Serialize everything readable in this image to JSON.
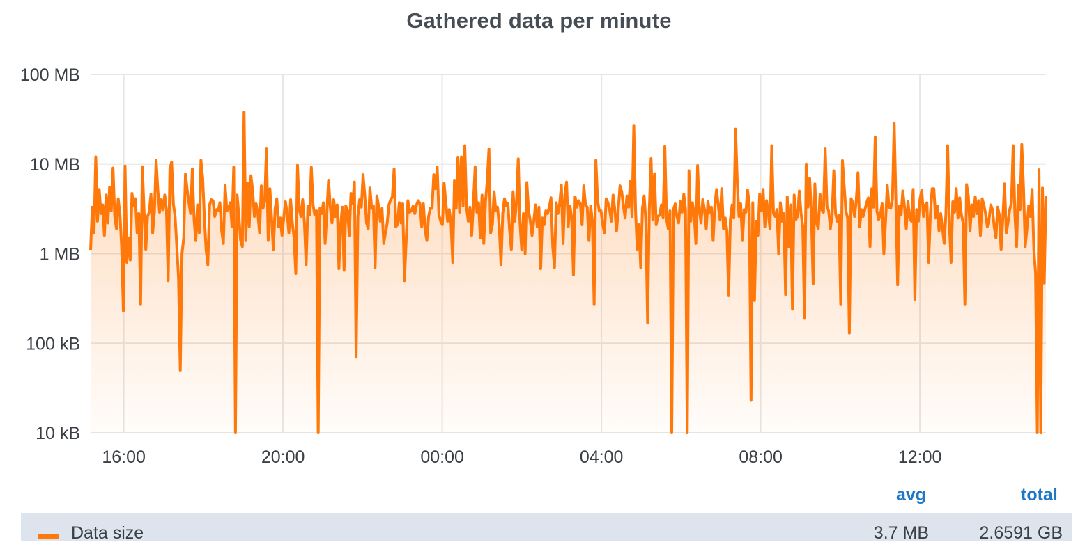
{
  "panel": {
    "title": "Gathered data per minute"
  },
  "legend": {
    "headers": {
      "avg": "avg",
      "total": "total"
    },
    "series": [
      {
        "name": "Data size",
        "avg": "3.7 MB",
        "total": "2.6591 GB",
        "color": "#ff780a"
      }
    ]
  },
  "colors": {
    "series": "#ff780a",
    "fill": "#ff780a",
    "grid": "#e6e6e6",
    "legend_header": "#1f78c1",
    "legend_bg": "#dde4ed"
  },
  "chart_data": {
    "type": "area",
    "title": "Gathered data per minute",
    "y_scale": "log10",
    "ylim_bytes": [
      10000,
      100000000
    ],
    "y_ticks": [
      {
        "value": 100000000,
        "label": "100 MB"
      },
      {
        "value": 10000000,
        "label": "10 MB"
      },
      {
        "value": 1000000,
        "label": "1 MB"
      },
      {
        "value": 100000,
        "label": "100 kB"
      },
      {
        "value": 10000,
        "label": "10 kB"
      }
    ],
    "x_range": [
      "15:10",
      "15:10 (+1 day)"
    ],
    "x_ticks": [
      "16:00",
      "20:00",
      "00:00",
      "04:00",
      "08:00",
      "12:00"
    ],
    "grid": true,
    "legend_position": "bottom",
    "series": [
      {
        "name": "Data size",
        "x_start": "15:10",
        "x_end": "15:10 (+1 day)",
        "y_unit": "bytes",
        "values": [
          1100000,
          3300000,
          1700000,
          12000000,
          2300000,
          5200000,
          2800000,
          3500000,
          1600000,
          4500000,
          2200000,
          5500000,
          3000000,
          9000000,
          2600000,
          1900000,
          4100000,
          2800000,
          1200000,
          230000,
          9500000,
          800000,
          1500000,
          850000,
          4700000,
          3400000,
          4100000,
          1700000,
          2800000,
          270000,
          9300000,
          3000000,
          1100000,
          2600000,
          2900000,
          4600000,
          1700000,
          2900000,
          11000000,
          5100000,
          2900000,
          4000000,
          3100000,
          4500000,
          3100000,
          500000,
          8900000,
          10500000,
          3600000,
          2600000,
          1200000,
          530000,
          50000,
          1000000,
          1500000,
          7700000,
          5200000,
          3700000,
          2800000,
          8800000,
          2400000,
          1400000,
          3500000,
          1700000,
          11000000,
          7000000,
          2500000,
          1100000,
          750000,
          3500000,
          4000000,
          3900000,
          2600000,
          3100000,
          3000000,
          3700000,
          1800000,
          1300000,
          5800000,
          3000000,
          3200000,
          3700000,
          2000000,
          9200000,
          10000,
          4500000,
          2600000,
          1400000,
          1200000,
          38000000,
          1400000,
          6100000,
          2000000,
          7400000,
          5000000,
          2600000,
          3600000,
          2800000,
          1700000,
          5700000,
          3200000,
          3900000,
          15000000,
          1400000,
          5300000,
          2400000,
          1100000,
          3200000,
          4100000,
          2000000,
          2500000,
          1600000,
          2500000,
          3800000,
          2800000,
          1700000,
          4000000,
          2200000,
          1500000,
          600000,
          9700000,
          3100000,
          2600000,
          4000000,
          2200000,
          750000,
          3400000,
          2700000,
          9200000,
          3500000,
          2700000,
          3000000,
          10000,
          3200000,
          2800000,
          3700000,
          1300000,
          2800000,
          6600000,
          3300000,
          2200000,
          4000000,
          2600000,
          3500000,
          680000,
          2100000,
          3300000,
          650000,
          3400000,
          3000000,
          1600000,
          4700000,
          3600000,
          6300000,
          70000,
          2600000,
          4000000,
          3300000,
          7600000,
          4500000,
          2200000,
          1900000,
          5400000,
          3200000,
          3400000,
          700000,
          4400000,
          3400000,
          2300000,
          3200000,
          1300000,
          1700000,
          2200000,
          3500000,
          4000000,
          4300000,
          8800000,
          2000000,
          2100000,
          3700000,
          2200000,
          3600000,
          500000,
          1400000,
          3900000,
          2900000,
          3000000,
          3400000,
          2800000,
          3500000,
          3900000,
          3600000,
          2000000,
          3600000,
          1800000,
          1400000,
          2600000,
          3200000,
          3200000,
          7600000,
          5300000,
          9200000,
          2700000,
          2300000,
          2100000,
          6100000,
          3700000,
          2300000,
          3100000,
          2200000,
          800000,
          6600000,
          3200000,
          11900000,
          2900000,
          12000000,
          3400000,
          16000000,
          3300000,
          2300000,
          3300000,
          1600000,
          3700000,
          9300000,
          2900000,
          3700000,
          1500000,
          4500000,
          1300000,
          3800000,
          6400000,
          14800000,
          1700000,
          2100000,
          4900000,
          3000000,
          3300000,
          2000000,
          750000,
          2800000,
          4100000,
          3400000,
          3600000,
          1800000,
          1100000,
          4900000,
          2300000,
          3800000,
          11400000,
          2200000,
          1100000,
          2800000,
          1000000,
          6200000,
          3000000,
          2300000,
          1600000,
          2300000,
          3500000,
          2000000,
          3300000,
          680000,
          2500000,
          2100000,
          3000000,
          2800000,
          3300000,
          4200000,
          1200000,
          700000,
          3700000,
          2800000,
          3600000,
          5800000,
          1300000,
          4500000,
          6300000,
          2000000,
          3400000,
          2500000,
          580000,
          4300000,
          3300000,
          3900000,
          3600000,
          2100000,
          5700000,
          3500000,
          3300000,
          1400000,
          3400000,
          2300000,
          270000,
          11000000,
          3900000,
          3000000,
          3000000,
          2100000,
          1700000,
          4100000,
          3700000,
          3100000,
          2300000,
          4500000,
          3100000,
          1800000,
          3100000,
          5700000,
          4900000,
          3400000,
          2500000,
          4400000,
          3300000,
          6400000,
          2600000,
          27000000,
          3100000,
          1100000,
          2100000,
          700000,
          3200000,
          4400000,
          2300000,
          170000,
          3100000,
          11500000,
          2400000,
          7800000,
          2100000,
          2600000,
          2700000,
          3500000,
          2500000,
          15700000,
          2400000,
          1900000,
          3000000,
          10000,
          3100000,
          3600000,
          2600000,
          2200000,
          3800000,
          2900000,
          4600000,
          3100000,
          10000,
          8400000,
          2300000,
          3700000,
          2800000,
          1300000,
          9600000,
          3000000,
          2200000,
          4000000,
          3100000,
          1900000,
          3800000,
          2900000,
          3300000,
          1400000,
          3500000,
          5200000,
          3400000,
          2400000,
          5300000,
          1900000,
          2500000,
          1800000,
          340000,
          2400000,
          3500000,
          2500000,
          24500000,
          6400000,
          2600000,
          3600000,
          1400000,
          3100000,
          2900000,
          5100000,
          3500000,
          23000,
          3700000,
          300000,
          2300000,
          1600000,
          4600000,
          3000000,
          5200000,
          2000000,
          3900000,
          2800000,
          1900000,
          16000000,
          2800000,
          2600000,
          3100000,
          1000000,
          3700000,
          2300000,
          2800000,
          350000,
          4300000,
          1200000,
          3500000,
          240000,
          4500000,
          2400000,
          2600000,
          5000000,
          2800000,
          2000000,
          190000,
          10000000,
          3300000,
          6900000,
          2700000,
          460000,
          6000000,
          2200000,
          1900000,
          4600000,
          3100000,
          2900000,
          15000000,
          3400000,
          3000000,
          1900000,
          2700000,
          8400000,
          2800000,
          2300000,
          2700000,
          270000,
          10900000,
          5600000,
          3000000,
          2500000,
          130000,
          4100000,
          3700000,
          2600000,
          3900000,
          8000000,
          2000000,
          3100000,
          2600000,
          3100000,
          3700000,
          4200000,
          1200000,
          5300000,
          3300000,
          20000000,
          3000000,
          2400000,
          2700000,
          3600000,
          1000000,
          2300000,
          5800000,
          3300000,
          3200000,
          4100000,
          28500000,
          3900000,
          450000,
          3400000,
          2700000,
          5000000,
          3300000,
          1900000,
          3800000,
          2500000,
          2300000,
          5200000,
          310000,
          3100000,
          2300000,
          4100000,
          5100000,
          2600000,
          3500000,
          3700000,
          800000,
          2800000,
          5300000,
          5300000,
          2500000,
          3400000,
          1800000,
          2800000,
          1900000,
          1300000,
          2800000,
          16000000,
          2200000,
          800000,
          3800000,
          2900000,
          5300000,
          2500000,
          4200000,
          2700000,
          2200000,
          270000,
          5900000,
          4400000,
          1800000,
          3500000,
          2600000,
          4300000,
          2800000,
          3900000,
          1600000,
          4100000,
          3500000,
          2800000,
          2000000,
          2400000,
          3500000,
          3100000,
          2000000,
          1500000,
          3300000,
          2700000,
          1100000,
          2500000,
          6000000,
          1700000,
          2200000,
          3100000,
          3700000,
          16000000,
          2700000,
          1200000,
          5800000,
          3100000,
          16500000,
          5400000,
          1200000,
          1900000,
          3400000,
          2600000,
          5200000,
          1100000,
          600000,
          10000,
          8600000,
          10000,
          5400000,
          470000,
          4400000
        ]
      }
    ]
  }
}
